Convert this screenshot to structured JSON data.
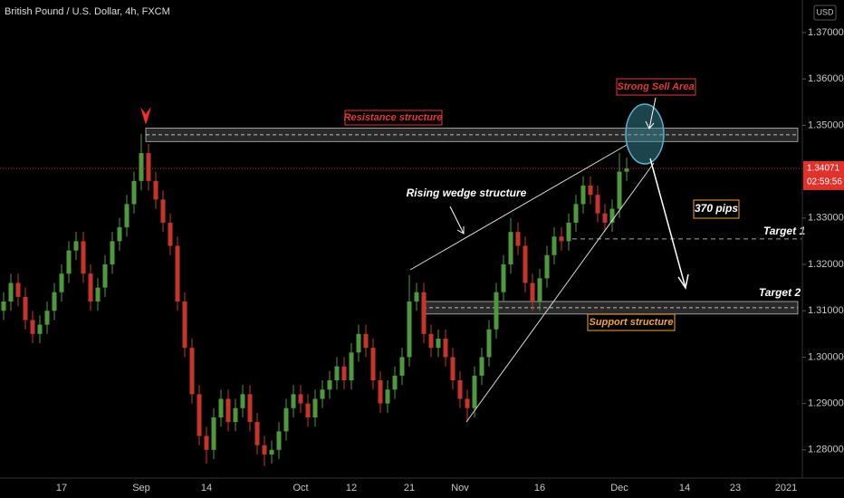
{
  "chart_data": {
    "type": "candlestick",
    "title": "British Pound / U.S. Dollar, 4h, FXCM",
    "currency": "USD",
    "countdown": "02:59:56",
    "last_price": 1.34071,
    "up_color": "#4e9a3a",
    "down_color": "#c8332c",
    "grid": false,
    "ylim": [
      1.27391,
      1.37703
    ],
    "yticks": [
      {
        "value": 1.28,
        "label": "1.28000"
      },
      {
        "value": 1.29,
        "label": "1.29000"
      },
      {
        "value": 1.3,
        "label": "1.30000"
      },
      {
        "value": 1.31,
        "label": "1.31000"
      },
      {
        "value": 1.32,
        "label": "1.32000"
      },
      {
        "value": 1.33,
        "label": "1.33000"
      },
      {
        "value": 1.35,
        "label": "1.35000"
      },
      {
        "value": 1.36,
        "label": "1.36000"
      },
      {
        "value": 1.37,
        "label": "1.37000"
      }
    ],
    "categories": [
      null,
      null,
      null,
      null,
      null,
      null,
      null,
      null,
      "17",
      null,
      null,
      null,
      null,
      null,
      null,
      null,
      null,
      null,
      null,
      "Sep",
      null,
      null,
      null,
      null,
      null,
      null,
      null,
      null,
      "14",
      null,
      null,
      null,
      null,
      null,
      null,
      null,
      null,
      null,
      null,
      null,
      null,
      "Oct",
      null,
      null,
      null,
      null,
      null,
      null,
      "12",
      null,
      null,
      null,
      null,
      null,
      null,
      null,
      "21",
      null,
      null,
      null,
      null,
      null,
      null,
      "Nov",
      null,
      null,
      null,
      null,
      null,
      null,
      null,
      null,
      null,
      null,
      "16",
      null,
      null,
      null,
      null,
      null,
      null,
      null,
      null,
      null,
      null,
      "Dec",
      null,
      null,
      null,
      null,
      null,
      null,
      null,
      null,
      "14",
      null,
      null,
      null,
      null,
      null,
      null,
      "23",
      null,
      null,
      null,
      null,
      null,
      null,
      "2021",
      null
    ],
    "open": [
      1.31,
      1.312,
      1.316,
      1.313,
      1.308,
      1.305,
      1.307,
      1.31,
      1.314,
      1.318,
      1.323,
      1.325,
      1.318,
      1.312,
      1.315,
      1.32,
      1.325,
      1.328,
      1.333,
      1.338,
      1.344,
      1.338,
      1.334,
      1.329,
      1.324,
      1.312,
      1.302,
      1.292,
      1.283,
      1.28,
      1.287,
      1.291,
      1.286,
      1.289,
      1.292,
      1.286,
      1.281,
      1.279,
      1.28,
      1.284,
      1.289,
      1.292,
      1.29,
      1.287,
      1.291,
      1.293,
      1.295,
      1.298,
      1.295,
      1.301,
      1.305,
      1.302,
      1.295,
      1.29,
      1.293,
      1.296,
      1.3,
      1.312,
      1.314,
      1.305,
      1.302,
      1.304,
      1.3,
      1.295,
      1.291,
      1.289,
      1.296,
      1.3,
      1.306,
      1.314,
      1.32,
      1.327,
      1.324,
      1.316,
      1.312,
      1.317,
      1.322,
      1.326,
      1.325,
      1.329,
      1.333,
      1.337,
      1.335,
      1.331,
      1.329,
      1.332,
      1.34,
      null,
      null,
      null,
      null,
      null,
      null,
      null,
      null,
      null,
      null,
      null,
      null,
      null,
      null,
      null,
      null,
      null,
      null,
      null,
      null,
      null,
      null,
      null
    ],
    "high": [
      1.314,
      1.318,
      1.318,
      1.315,
      1.31,
      1.309,
      1.312,
      1.316,
      1.32,
      1.325,
      1.327,
      1.327,
      1.32,
      1.317,
      1.322,
      1.327,
      1.33,
      1.335,
      1.34,
      1.3482,
      1.346,
      1.34,
      1.336,
      1.331,
      1.326,
      1.314,
      1.304,
      1.294,
      1.285,
      1.289,
      1.293,
      1.293,
      1.291,
      1.294,
      1.294,
      1.288,
      1.283,
      1.282,
      1.286,
      1.291,
      1.294,
      1.294,
      1.292,
      1.293,
      1.295,
      1.297,
      1.3,
      1.3,
      1.303,
      1.307,
      1.307,
      1.304,
      1.297,
      1.295,
      1.298,
      1.302,
      1.3177,
      1.316,
      1.316,
      1.307,
      1.306,
      1.306,
      1.302,
      1.297,
      1.293,
      1.298,
      1.302,
      1.308,
      1.316,
      1.322,
      1.33,
      1.329,
      1.326,
      1.318,
      1.319,
      1.324,
      1.328,
      1.328,
      1.331,
      1.335,
      1.339,
      1.339,
      1.337,
      1.333,
      1.334,
      1.344,
      1.343,
      null,
      null,
      null,
      null,
      null,
      null,
      null,
      null,
      null,
      null,
      null,
      null,
      null,
      null,
      null,
      null,
      null,
      null,
      null,
      null,
      null,
      null,
      null
    ],
    "low": [
      1.308,
      1.31,
      1.311,
      1.306,
      1.303,
      1.303,
      1.305,
      1.308,
      1.312,
      1.316,
      1.321,
      1.316,
      1.31,
      1.31,
      1.313,
      1.318,
      1.323,
      1.326,
      1.331,
      1.336,
      1.336,
      1.332,
      1.327,
      1.322,
      1.31,
      1.3,
      1.29,
      1.281,
      1.277,
      1.278,
      1.285,
      1.284,
      1.284,
      1.287,
      1.284,
      1.279,
      1.2765,
      1.277,
      1.278,
      1.282,
      1.287,
      1.288,
      1.285,
      1.285,
      1.289,
      1.291,
      1.293,
      1.293,
      1.293,
      1.299,
      1.3,
      1.293,
      1.288,
      1.288,
      1.291,
      1.294,
      1.298,
      1.31,
      1.303,
      1.3,
      1.3,
      1.298,
      1.293,
      1.289,
      1.286,
      1.287,
      1.294,
      1.298,
      1.304,
      1.312,
      1.318,
      1.322,
      1.314,
      1.31,
      1.31,
      1.315,
      1.32,
      1.323,
      1.323,
      1.327,
      1.331,
      1.333,
      1.329,
      1.327,
      1.327,
      1.33,
      1.338,
      null,
      null,
      null,
      null,
      null,
      null,
      null,
      null,
      null,
      null,
      null,
      null,
      null,
      null,
      null,
      null,
      null,
      null,
      null,
      null,
      null,
      null,
      null
    ],
    "close": [
      1.312,
      1.316,
      1.313,
      1.308,
      1.305,
      1.307,
      1.31,
      1.314,
      1.318,
      1.323,
      1.325,
      1.318,
      1.312,
      1.315,
      1.32,
      1.325,
      1.328,
      1.333,
      1.338,
      1.344,
      1.338,
      1.334,
      1.329,
      1.324,
      1.312,
      1.302,
      1.292,
      1.283,
      1.28,
      1.287,
      1.291,
      1.286,
      1.289,
      1.292,
      1.286,
      1.281,
      1.279,
      1.28,
      1.284,
      1.289,
      1.292,
      1.29,
      1.287,
      1.291,
      1.293,
      1.295,
      1.298,
      1.295,
      1.301,
      1.305,
      1.302,
      1.295,
      1.29,
      1.293,
      1.296,
      1.3,
      1.312,
      1.314,
      1.305,
      1.302,
      1.304,
      1.3,
      1.295,
      1.291,
      1.289,
      1.296,
      1.3,
      1.306,
      1.314,
      1.32,
      1.327,
      1.324,
      1.316,
      1.312,
      1.317,
      1.322,
      1.326,
      1.325,
      1.329,
      1.333,
      1.337,
      1.335,
      1.331,
      1.329,
      1.332,
      1.34,
      1.3407,
      null,
      null,
      null,
      null,
      null,
      null,
      null,
      null,
      null,
      null,
      null,
      null,
      null,
      null,
      null,
      null,
      null,
      null,
      null,
      null,
      null,
      null,
      null
    ],
    "zones": [
      {
        "top": 1.3494,
        "bottom": 1.3465
      },
      {
        "top": 1.312,
        "bottom": 1.3093
      }
    ],
    "target_level": 1.3255,
    "annotations": [
      "Resistance structure",
      "Strong Sell Area",
      "Rising wedge structure",
      "370 pips",
      "Target 1",
      "Target 2",
      "Support structure"
    ]
  }
}
